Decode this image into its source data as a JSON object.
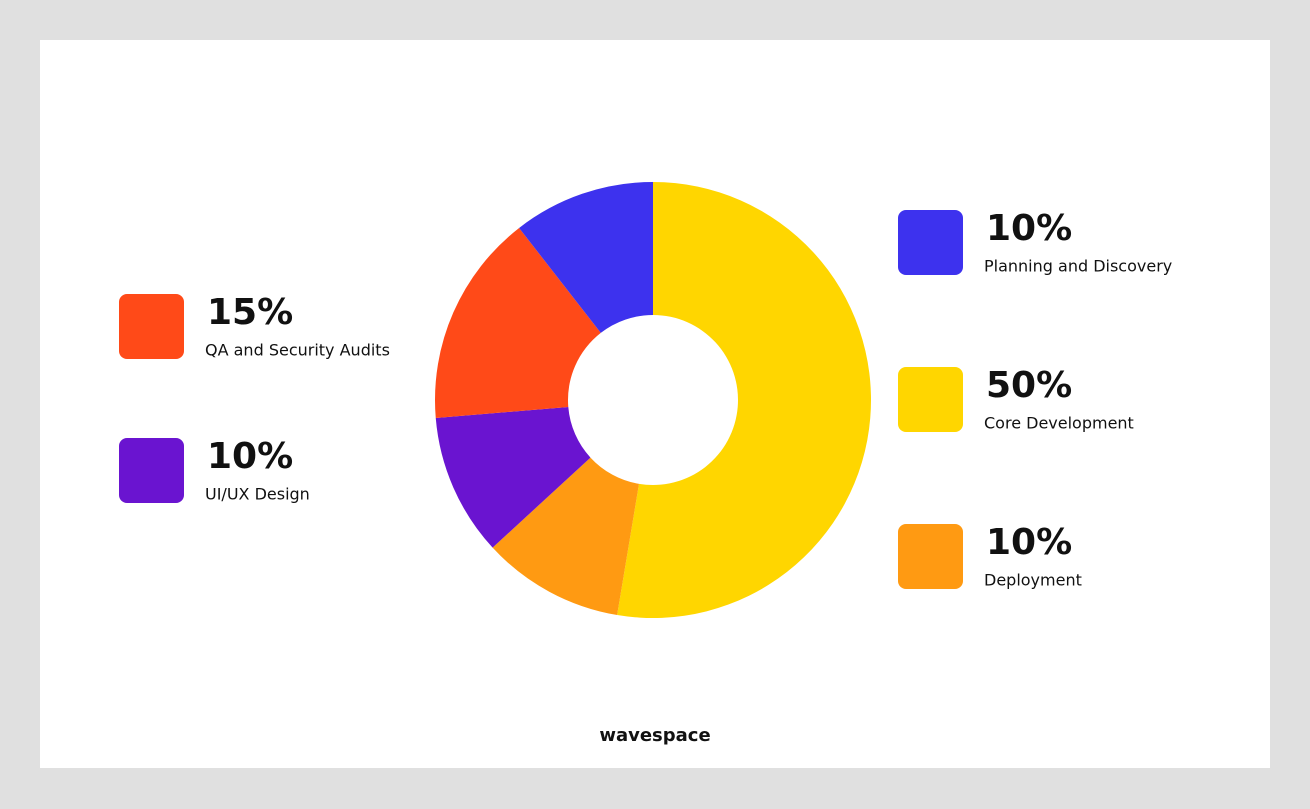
{
  "chart_data": {
    "type": "donut",
    "categories": [
      "Core Development",
      "Deployment",
      "UI/UX Design",
      "QA and Security Audits",
      "Planning and Discovery"
    ],
    "values": [
      50,
      10,
      10,
      15,
      10
    ],
    "value_labels": [
      "50%",
      "10%",
      "10%",
      "15%",
      "10%"
    ],
    "colors": [
      "#ffd600",
      "#ff9a12",
      "#6a14d0",
      "#ff4a18",
      "#3d32ee"
    ],
    "footer": "wavespace"
  }
}
